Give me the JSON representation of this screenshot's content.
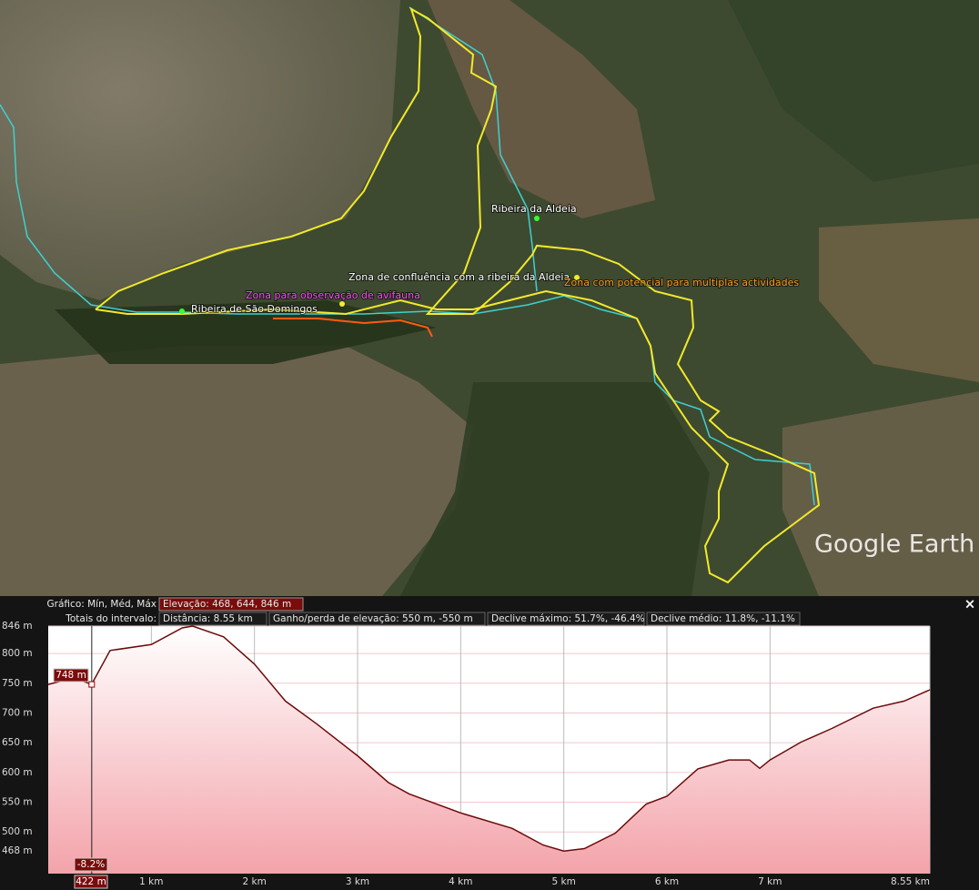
{
  "map": {
    "labels": [
      "Ribeira da Aldeia",
      "Zona de confluência com a ribeira da Aldeia",
      "Zona para observação de avifauna",
      "Zona com potencial para multiplas actividades",
      "Ribeira de São Domingos"
    ],
    "logo": "Google Earth"
  },
  "stats": {
    "chart_label": "Gráfico: Mín, Méd, Máx",
    "elevation": "Elevação: 468, 644, 846 m",
    "totals_label": "Totais do intervalo:",
    "distance": "Distância: 8.55 km",
    "gain_loss": "Ganho/perda de elevação: 550 m, -550 m",
    "max_slope": "Declive máximo: 51.7%, -46.4%",
    "avg_slope": "Declive médio: 11.8%, -11.1%",
    "close": "×"
  },
  "chart_data": {
    "type": "area",
    "x": [
      0,
      0.25,
      0.42,
      0.6,
      1.0,
      1.3,
      1.4,
      1.7,
      2.0,
      2.3,
      2.6,
      3.0,
      3.3,
      3.5,
      4.0,
      4.5,
      4.8,
      5.0,
      5.2,
      5.5,
      5.8,
      6.0,
      6.3,
      6.6,
      6.8,
      6.9,
      7.0,
      7.3,
      7.6,
      8.0,
      8.3,
      8.55
    ],
    "values": [
      748,
      759,
      748,
      805,
      815,
      843,
      846,
      828,
      782,
      720,
      682,
      628,
      583,
      564,
      532,
      506,
      478,
      468,
      472,
      498,
      547,
      560,
      606,
      621,
      621,
      607,
      621,
      651,
      674,
      708,
      720,
      739
    ],
    "line_color": "#6b0a0a",
    "fill_color": "#f3a3aa",
    "xlim": [
      0,
      8.55
    ],
    "ylim": [
      430,
      846
    ],
    "xticks": [
      {
        "value": 1,
        "label": "1 km"
      },
      {
        "value": 2,
        "label": "2 km"
      },
      {
        "value": 3,
        "label": "3 km"
      },
      {
        "value": 4,
        "label": "4 km"
      },
      {
        "value": 5,
        "label": "5 km"
      },
      {
        "value": 6,
        "label": "6 km"
      },
      {
        "value": 7,
        "label": "7 km"
      },
      {
        "value": 8.55,
        "label": "8.55 km"
      }
    ],
    "yticks": [
      {
        "value": 846,
        "label": "846 m"
      },
      {
        "value": 800,
        "label": "800 m"
      },
      {
        "value": 750,
        "label": "750 m"
      },
      {
        "value": 700,
        "label": "700 m"
      },
      {
        "value": 650,
        "label": "650 m"
      },
      {
        "value": 600,
        "label": "600 m"
      },
      {
        "value": 550,
        "label": "550 m"
      },
      {
        "value": 500,
        "label": "500 m"
      },
      {
        "value": 468,
        "label": "468 m"
      }
    ],
    "grid": true,
    "cursor": {
      "x": 0.422,
      "x_label": "422 m",
      "elevation": 748,
      "elevation_label": "748 m",
      "slope_label": "-8.2%"
    }
  }
}
